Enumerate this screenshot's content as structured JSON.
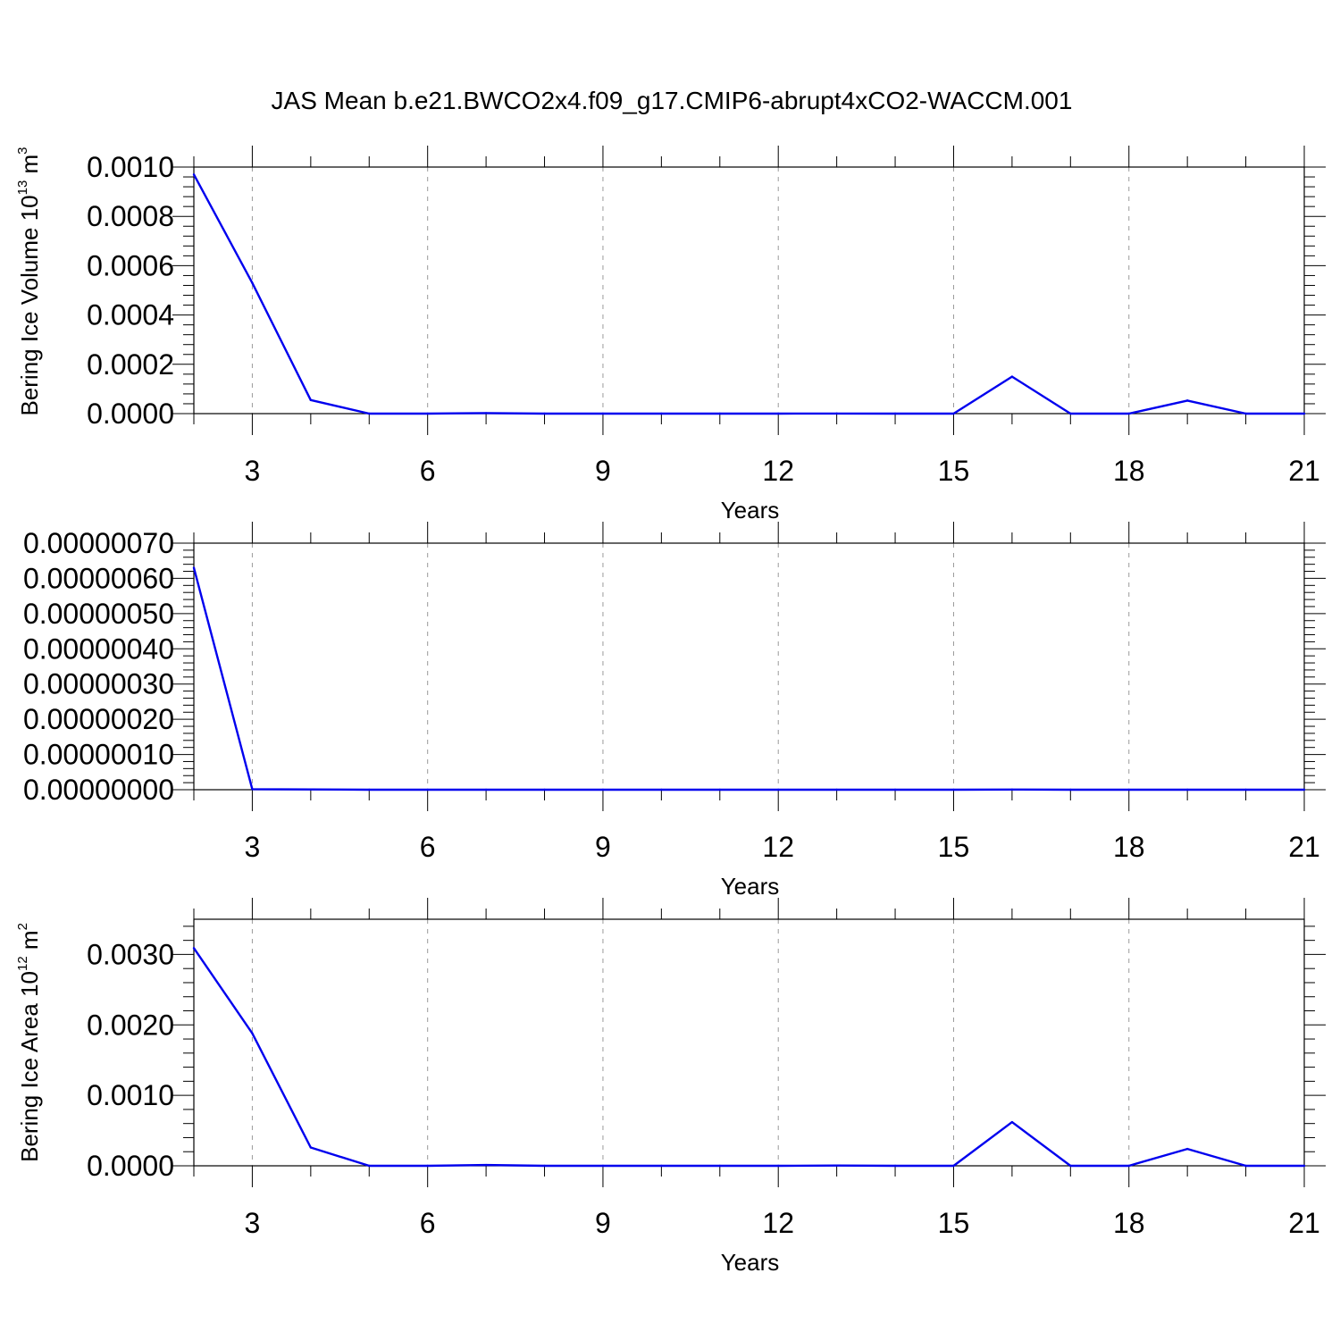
{
  "title": "JAS Mean b.e21.BWCO2x4.f09_g17.CMIP6-abrupt4xCO2-WACCM.001",
  "chart_data": [
    {
      "type": "line",
      "xlabel": "Years",
      "ylabel": {
        "text": "Bering Ice Volume 10",
        "sup": "13",
        "unit": " m",
        "unit_sup": "3"
      },
      "xlim": [
        2,
        21
      ],
      "ylim": [
        0,
        0.001
      ],
      "xticks": [
        3,
        6,
        9,
        12,
        15,
        18,
        21
      ],
      "yticks": [
        0,
        0.0002,
        0.0004,
        0.0006,
        0.0008,
        0.001
      ],
      "ytick_labels": [
        "0.0000",
        "0.0002",
        "0.0004",
        "0.0006",
        "0.0008",
        "0.0010"
      ],
      "grid": "vertical-dashed",
      "color": "#0000ee",
      "x": [
        2,
        3,
        4,
        5,
        6,
        7,
        8,
        9,
        10,
        11,
        12,
        13,
        14,
        15,
        16,
        17,
        18,
        19,
        20,
        21
      ],
      "values": [
        0.00097,
        0.00053,
        5.5e-05,
        0.0,
        0.0,
        2e-06,
        0.0,
        0.0,
        0.0,
        0.0,
        0.0,
        5e-07,
        0.0,
        0.0,
        0.00015,
        0.0,
        0.0,
        5.3e-05,
        0.0,
        0.0
      ]
    },
    {
      "type": "line",
      "xlabel": "Years",
      "ylabel": "",
      "xlim": [
        2,
        21
      ],
      "ylim": [
        0,
        7e-07
      ],
      "xticks": [
        3,
        6,
        9,
        12,
        15,
        18,
        21
      ],
      "yticks": [
        0,
        1e-07,
        2e-07,
        3e-07,
        4e-07,
        5e-07,
        6e-07,
        7e-07
      ],
      "ytick_labels": [
        "0.00000000",
        "0.00000010",
        "0.00000020",
        "0.00000030",
        "0.00000040",
        "0.00000050",
        "0.00000060",
        "0.00000070"
      ],
      "grid": "vertical-dashed",
      "color": "#0000ee",
      "x": [
        2,
        3,
        4,
        5,
        6,
        7,
        8,
        9,
        10,
        11,
        12,
        13,
        14,
        15,
        16,
        17,
        18,
        19,
        20,
        21
      ],
      "values": [
        6.3e-07,
        1.5e-09,
        8e-10,
        0.0,
        0.0,
        0.0,
        0.0,
        0.0,
        0.0,
        0.0,
        0.0,
        0.0,
        0.0,
        0.0,
        5e-10,
        0.0,
        0.0,
        0.0,
        0.0,
        0.0
      ]
    },
    {
      "type": "line",
      "xlabel": "Years",
      "ylabel": {
        "text": "Bering Ice Area 10",
        "sup": "12",
        "unit": " m",
        "unit_sup": "2"
      },
      "xlim": [
        2,
        21
      ],
      "ylim": [
        0,
        0.0035
      ],
      "xticks": [
        3,
        6,
        9,
        12,
        15,
        18,
        21
      ],
      "yticks": [
        0,
        0.001,
        0.002,
        0.003
      ],
      "ytick_labels": [
        "0.0000",
        "0.0010",
        "0.0020",
        "0.0030"
      ],
      "grid": "vertical-dashed",
      "color": "#0000ee",
      "x": [
        2,
        3,
        4,
        5,
        6,
        7,
        8,
        9,
        10,
        11,
        12,
        13,
        14,
        15,
        16,
        17,
        18,
        19,
        20,
        21
      ],
      "values": [
        0.00309,
        0.00188,
        0.00026,
        0.0,
        0.0,
        1.2e-05,
        0.0,
        0.0,
        0.0,
        0.0,
        0.0,
        4e-06,
        0.0,
        0.0,
        0.00062,
        0.0,
        0.0,
        0.00024,
        0.0,
        0.0
      ]
    }
  ]
}
